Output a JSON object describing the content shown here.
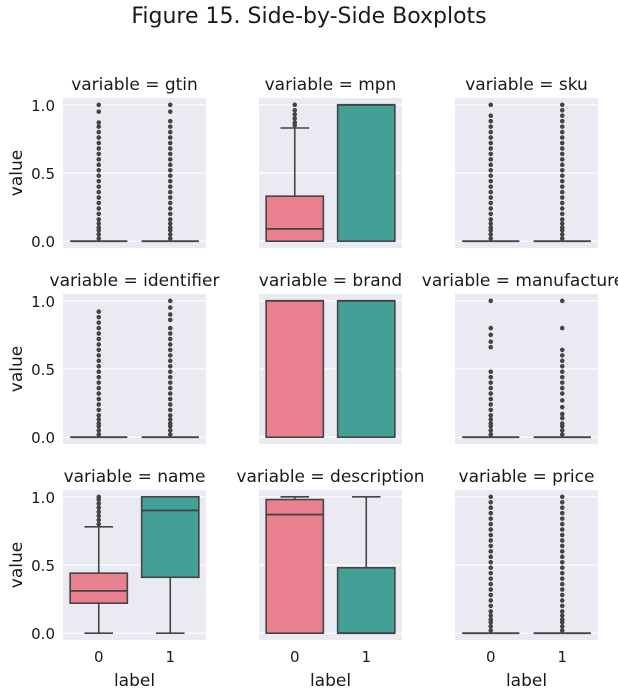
{
  "figure_title": "Figure 15. Side-by-Side Boxplots",
  "colors": {
    "label_0": "#E8808F",
    "label_1": "#43A097",
    "panel_bg": "#EAEAF2",
    "line": "#444444"
  },
  "chart_data": {
    "type": "boxplot",
    "grid": true,
    "shared_ylim": [
      -0.05,
      1.05
    ],
    "yticks": [
      "0.0",
      "0.5",
      "1.0"
    ],
    "ylabel": "value",
    "xlabel": "label",
    "categories": [
      "0",
      "1"
    ],
    "panels": [
      {
        "title": "variable = gtin",
        "boxes": [
          {
            "label": "0",
            "q1": 0.0,
            "median": 0.0,
            "q3": 0.0,
            "whislo": 0.0,
            "whishi": 0.0,
            "fliers": [
              0.02,
              0.05,
              0.08,
              0.1,
              0.13,
              0.16,
              0.2,
              0.24,
              0.28,
              0.32,
              0.36,
              0.4,
              0.44,
              0.48,
              0.52,
              0.56,
              0.6,
              0.64,
              0.68,
              0.72,
              0.76,
              0.8,
              0.84,
              0.87,
              0.95,
              1.0
            ]
          },
          {
            "label": "1",
            "q1": 0.0,
            "median": 0.0,
            "q3": 0.0,
            "whislo": 0.0,
            "whishi": 0.0,
            "fliers": [
              0.02,
              0.05,
              0.08,
              0.1,
              0.13,
              0.16,
              0.2,
              0.24,
              0.28,
              0.32,
              0.36,
              0.4,
              0.44,
              0.48,
              0.52,
              0.56,
              0.6,
              0.64,
              0.68,
              0.72,
              0.76,
              0.8,
              0.84,
              0.88,
              0.95,
              1.0
            ]
          }
        ]
      },
      {
        "title": "variable = mpn",
        "boxes": [
          {
            "label": "0",
            "q1": 0.0,
            "median": 0.09,
            "q3": 0.33,
            "whislo": 0.0,
            "whishi": 0.83,
            "fliers": [
              0.85,
              0.87,
              0.9,
              0.93,
              0.96,
              1.0
            ]
          },
          {
            "label": "1",
            "q1": 0.0,
            "median": 1.0,
            "q3": 1.0,
            "whislo": 0.0,
            "whishi": 1.0,
            "fliers": []
          }
        ]
      },
      {
        "title": "variable = sku",
        "boxes": [
          {
            "label": "0",
            "q1": 0.0,
            "median": 0.0,
            "q3": 0.0,
            "whislo": 0.0,
            "whishi": 0.0,
            "fliers": [
              0.02,
              0.05,
              0.08,
              0.1,
              0.13,
              0.16,
              0.2,
              0.24,
              0.28,
              0.32,
              0.36,
              0.4,
              0.44,
              0.48,
              0.52,
              0.56,
              0.6,
              0.64,
              0.68,
              0.72,
              0.76,
              0.8,
              0.84,
              0.88,
              0.92,
              1.0
            ]
          },
          {
            "label": "1",
            "q1": 0.0,
            "median": 0.0,
            "q3": 0.0,
            "whislo": 0.0,
            "whishi": 0.0,
            "fliers": [
              0.02,
              0.05,
              0.08,
              0.1,
              0.13,
              0.16,
              0.2,
              0.24,
              0.28,
              0.32,
              0.36,
              0.4,
              0.44,
              0.48,
              0.52,
              0.56,
              0.6,
              0.64,
              0.68,
              0.72,
              0.76,
              0.8,
              0.84,
              0.88,
              0.92,
              0.96,
              1.0
            ]
          }
        ]
      },
      {
        "title": "variable = identifier",
        "boxes": [
          {
            "label": "0",
            "q1": 0.0,
            "median": 0.0,
            "q3": 0.0,
            "whislo": 0.0,
            "whishi": 0.0,
            "fliers": [
              0.02,
              0.05,
              0.08,
              0.1,
              0.13,
              0.16,
              0.2,
              0.24,
              0.28,
              0.32,
              0.36,
              0.4,
              0.44,
              0.48,
              0.52,
              0.56,
              0.6,
              0.64,
              0.68,
              0.72,
              0.76,
              0.8,
              0.84,
              0.88,
              0.92
            ]
          },
          {
            "label": "1",
            "q1": 0.0,
            "median": 0.0,
            "q3": 0.0,
            "whislo": 0.0,
            "whishi": 0.0,
            "fliers": [
              0.02,
              0.05,
              0.08,
              0.1,
              0.13,
              0.16,
              0.2,
              0.24,
              0.28,
              0.32,
              0.36,
              0.4,
              0.44,
              0.48,
              0.52,
              0.56,
              0.6,
              0.64,
              0.68,
              0.72,
              0.76,
              0.8,
              0.86,
              0.9,
              0.95,
              1.0
            ]
          }
        ]
      },
      {
        "title": "variable = brand",
        "boxes": [
          {
            "label": "0",
            "q1": 0.0,
            "median": 1.0,
            "q3": 1.0,
            "whislo": 0.0,
            "whishi": 1.0,
            "fliers": []
          },
          {
            "label": "1",
            "q1": 0.0,
            "median": 1.0,
            "q3": 1.0,
            "whislo": 0.0,
            "whishi": 1.0,
            "fliers": []
          }
        ]
      },
      {
        "title": "variable = manufacturer",
        "boxes": [
          {
            "label": "0",
            "q1": 0.0,
            "median": 0.0,
            "q3": 0.0,
            "whislo": 0.0,
            "whishi": 0.0,
            "fliers": [
              0.02,
              0.05,
              0.08,
              0.1,
              0.13,
              0.16,
              0.2,
              0.24,
              0.28,
              0.32,
              0.36,
              0.4,
              0.44,
              0.48,
              0.66,
              0.7,
              0.75,
              0.8,
              1.0
            ]
          },
          {
            "label": "1",
            "q1": 0.0,
            "median": 0.0,
            "q3": 0.0,
            "whislo": 0.0,
            "whishi": 0.0,
            "fliers": [
              0.02,
              0.05,
              0.08,
              0.1,
              0.14,
              0.17,
              0.22,
              0.27,
              0.32,
              0.36,
              0.4,
              0.44,
              0.48,
              0.52,
              0.56,
              0.6,
              0.64,
              0.8,
              1.0
            ]
          }
        ]
      },
      {
        "title": "variable = name",
        "boxes": [
          {
            "label": "0",
            "q1": 0.22,
            "median": 0.31,
            "q3": 0.44,
            "whislo": 0.0,
            "whishi": 0.78,
            "fliers": [
              0.8,
              0.83,
              0.86,
              0.89,
              0.92,
              0.95,
              0.98,
              1.0
            ]
          },
          {
            "label": "1",
            "q1": 0.41,
            "median": 0.9,
            "q3": 1.0,
            "whislo": 0.0,
            "whishi": 1.0,
            "fliers": []
          }
        ]
      },
      {
        "title": "variable = description",
        "boxes": [
          {
            "label": "0",
            "q1": 0.0,
            "median": 0.87,
            "q3": 0.98,
            "whislo": 0.0,
            "whishi": 1.0,
            "fliers": []
          },
          {
            "label": "1",
            "q1": 0.0,
            "median": 0.0,
            "q3": 0.48,
            "whislo": 0.0,
            "whishi": 1.0,
            "fliers": []
          }
        ]
      },
      {
        "title": "variable = price",
        "boxes": [
          {
            "label": "0",
            "q1": 0.0,
            "median": 0.0,
            "q3": 0.0,
            "whislo": 0.0,
            "whishi": 0.0,
            "fliers": [
              0.02,
              0.05,
              0.08,
              0.1,
              0.13,
              0.16,
              0.2,
              0.24,
              0.28,
              0.32,
              0.36,
              0.4,
              0.44,
              0.48,
              0.52,
              0.56,
              0.6,
              0.64,
              0.68,
              0.72,
              0.76,
              0.8,
              0.84,
              0.88,
              0.92,
              0.96,
              1.0
            ]
          },
          {
            "label": "1",
            "q1": 0.0,
            "median": 0.0,
            "q3": 0.0,
            "whislo": 0.0,
            "whishi": 0.0,
            "fliers": [
              0.02,
              0.05,
              0.08,
              0.1,
              0.13,
              0.16,
              0.2,
              0.24,
              0.28,
              0.32,
              0.36,
              0.4,
              0.44,
              0.48,
              0.52,
              0.56,
              0.6,
              0.64,
              0.68,
              0.72,
              0.76,
              0.8,
              0.84,
              0.88,
              0.92,
              0.96,
              1.0
            ]
          }
        ]
      }
    ]
  }
}
